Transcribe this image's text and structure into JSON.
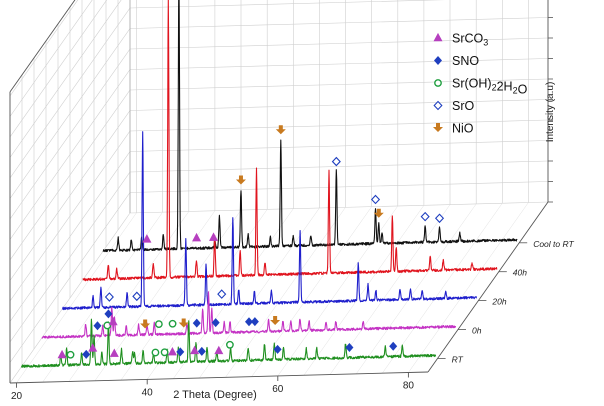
{
  "chart_data": {
    "type": "line",
    "title": "",
    "xlabel": "2 Theta (Degree)",
    "zlabel": "Intensity (a.u)",
    "x_ticks": [
      "20",
      "40",
      "60",
      "80"
    ],
    "x_tick_values": [
      20,
      40,
      60,
      80
    ],
    "xlim": [
      19,
      83
    ],
    "grid": true,
    "legend_position": "top-right",
    "colors": {
      "SrCO3": "#b63fbf",
      "SNO": "#1f3fbf",
      "Sr(OH)2H2O": "#1f9f3f",
      "SrO": "#1f3fbf",
      "NiO": "#c87a1f"
    },
    "legend": [
      {
        "key": "SrCO3",
        "label_main": "SrCO",
        "label_sub": "3",
        "label_tail": "",
        "marker": "triangle"
      },
      {
        "key": "SNO",
        "label_main": "SNO",
        "label_sub": "",
        "label_tail": "",
        "marker": "diamond-filled"
      },
      {
        "key": "Sr(OH)2H2O",
        "label_main": "Sr(OH)",
        "label_sub": "2",
        "label_tail": "2H",
        "label_sub2": "2",
        "label_tail2": "O",
        "marker": "circle-open"
      },
      {
        "key": "SrO",
        "label_main": "SrO",
        "label_sub": "",
        "label_tail": "",
        "marker": "diamond-open"
      },
      {
        "key": "NiO",
        "label_main": "NiO",
        "label_sub": "",
        "label_tail": "",
        "marker": "arrow-down"
      }
    ],
    "series": [
      {
        "name": "RT",
        "color": "#1f8f1f",
        "peaks": [
          [
            25.3,
            0.05
          ],
          [
            26.2,
            0.08
          ],
          [
            28.5,
            0.06
          ],
          [
            30.0,
            0.22
          ],
          [
            30.4,
            0.14
          ],
          [
            31.6,
            0.06
          ],
          [
            32.6,
            0.2
          ],
          [
            34.6,
            0.07
          ],
          [
            36.3,
            0.06
          ],
          [
            36.6,
            0.05
          ],
          [
            37.9,
            0.06
          ],
          [
            39.5,
            0.05
          ],
          [
            41.6,
            0.06
          ],
          [
            43.3,
            0.07
          ],
          [
            44.9,
            0.2
          ],
          [
            46.0,
            0.09
          ],
          [
            47.7,
            0.07
          ],
          [
            49.2,
            0.05
          ],
          [
            51.3,
            0.06
          ],
          [
            54.0,
            0.06
          ],
          [
            56.5,
            0.08
          ],
          [
            58.0,
            0.08
          ],
          [
            59.4,
            0.06
          ],
          [
            62.9,
            0.05
          ],
          [
            64.5,
            0.05
          ],
          [
            68.9,
            0.07
          ],
          [
            75.0,
            0.05
          ],
          [
            77.6,
            0.05
          ]
        ],
        "markers": [
          {
            "x": 25.5,
            "type": "SrCO3"
          },
          {
            "x": 26.8,
            "type": "Sr(OH)2H2O"
          },
          {
            "x": 29.2,
            "type": "SNO"
          },
          {
            "x": 30.2,
            "type": "SrCO3"
          },
          {
            "x": 32.6,
            "type": "SNO"
          },
          {
            "x": 33.5,
            "type": "SrCO3"
          },
          {
            "x": 39.8,
            "type": "Sr(OH)2H2O"
          },
          {
            "x": 41.2,
            "type": "Sr(OH)2H2O"
          },
          {
            "x": 42.4,
            "type": "SrCO3"
          },
          {
            "x": 43.6,
            "type": "SNO"
          },
          {
            "x": 45.8,
            "type": "SrCO3"
          },
          {
            "x": 46.9,
            "type": "SNO"
          },
          {
            "x": 49.5,
            "type": "SrCO3"
          },
          {
            "x": 51.2,
            "type": "Sr(OH)2H2O"
          },
          {
            "x": 58.5,
            "type": "SNO"
          },
          {
            "x": 69.5,
            "type": "SNO"
          },
          {
            "x": 76.2,
            "type": "SNO"
          }
        ]
      },
      {
        "name": "0h",
        "color": "#c433c4",
        "peaks": [
          [
            26.0,
            0.06
          ],
          [
            28.6,
            0.05
          ],
          [
            30.0,
            0.14
          ],
          [
            30.4,
            0.09
          ],
          [
            32.2,
            0.05
          ],
          [
            34.1,
            0.05
          ],
          [
            35.4,
            0.05
          ],
          [
            36.5,
            0.06
          ],
          [
            41.5,
            0.05
          ],
          [
            43.9,
            0.12
          ],
          [
            44.8,
            0.2
          ],
          [
            45.3,
            0.12
          ],
          [
            47.2,
            0.05
          ],
          [
            48.1,
            0.05
          ],
          [
            54.0,
            0.06
          ],
          [
            56.2,
            0.05
          ],
          [
            57.4,
            0.05
          ],
          [
            58.8,
            0.06
          ],
          [
            60.2,
            0.05
          ],
          [
            62.8,
            0.04
          ],
          [
            64.3,
            0.04
          ],
          [
            68.5,
            0.04
          ]
        ],
        "markers": [
          {
            "x": 27.8,
            "type": "SNO"
          },
          {
            "x": 29.3,
            "type": "Sr(OH)2H2O"
          },
          {
            "x": 30.2,
            "type": "SrCO3"
          },
          {
            "x": 35.1,
            "type": "NiO"
          },
          {
            "x": 37.2,
            "type": "Sr(OH)2H2O"
          },
          {
            "x": 39.3,
            "type": "Sr(OH)2H2O"
          },
          {
            "x": 41.0,
            "type": "NiO"
          },
          {
            "x": 43.0,
            "type": "SNO"
          },
          {
            "x": 45.9,
            "type": "SNO"
          },
          {
            "x": 51.0,
            "type": "SNO"
          },
          {
            "x": 51.9,
            "type": "SNO"
          },
          {
            "x": 55.0,
            "type": "NiO"
          }
        ]
      },
      {
        "name": "20h",
        "color": "#1f1fcc",
        "peaks": [
          [
            24.0,
            0.06
          ],
          [
            25.2,
            0.1
          ],
          [
            29.2,
            0.07
          ],
          [
            31.6,
            0.85
          ],
          [
            38.2,
            0.32
          ],
          [
            41.3,
            0.2
          ],
          [
            45.4,
            0.42
          ],
          [
            46.3,
            0.07
          ],
          [
            48.7,
            0.06
          ],
          [
            51.3,
            0.06
          ],
          [
            55.7,
            0.35
          ],
          [
            64.6,
            0.18
          ],
          [
            66.1,
            0.08
          ],
          [
            67.3,
            0.05
          ],
          [
            71.0,
            0.05
          ],
          [
            72.6,
            0.05
          ],
          [
            74.4,
            0.04
          ],
          [
            78.0,
            0.03
          ]
        ],
        "markers": [
          {
            "x": 26.5,
            "type": "SrO"
          },
          {
            "x": 30.7,
            "type": "SrO"
          },
          {
            "x": 43.7,
            "type": "SrO"
          }
        ]
      },
      {
        "name": "40h",
        "color": "#e0141e",
        "peaks": [
          [
            23.2,
            0.07
          ],
          [
            24.5,
            0.05
          ],
          [
            30.1,
            0.07
          ],
          [
            32.4,
            1.35
          ],
          [
            36.7,
            0.08
          ],
          [
            39.5,
            0.2
          ],
          [
            43.4,
            0.12
          ],
          [
            45.9,
            0.52
          ],
          [
            47.2,
            0.06
          ],
          [
            57.0,
            0.5
          ],
          [
            66.7,
            0.27
          ],
          [
            67.3,
            0.12
          ],
          [
            72.5,
            0.07
          ],
          [
            74.5,
            0.05
          ],
          [
            78.9,
            0.03
          ]
        ],
        "markers": []
      },
      {
        "name": "Cool to RT",
        "color": "#111111",
        "peaks": [
          [
            21.6,
            0.06
          ],
          [
            23.6,
            0.05
          ],
          [
            25.2,
            0.06
          ],
          [
            28.5,
            0.07
          ],
          [
            30.9,
            1.35
          ],
          [
            36.4,
            0.04
          ],
          [
            37.1,
            0.16
          ],
          [
            40.4,
            0.28
          ],
          [
            41.5,
            0.06
          ],
          [
            44.9,
            0.05
          ],
          [
            46.5,
            0.52
          ],
          [
            48.4,
            0.05
          ],
          [
            51.1,
            0.05
          ],
          [
            55.0,
            0.36
          ],
          [
            61.0,
            0.17
          ],
          [
            61.5,
            0.1
          ],
          [
            62.0,
            0.05
          ],
          [
            68.6,
            0.08
          ],
          [
            70.8,
            0.07
          ],
          [
            73.9,
            0.04
          ]
        ],
        "markers": [
          {
            "x": 26.0,
            "type": "SrCO3"
          },
          {
            "x": 30.9,
            "type": "SrO"
          },
          {
            "x": 33.6,
            "type": "SrCO3"
          },
          {
            "x": 36.2,
            "type": "SrCO3"
          },
          {
            "x": 40.4,
            "type": "NiO"
          },
          {
            "x": 46.5,
            "type": "NiO"
          },
          {
            "x": 55.0,
            "type": "SrO"
          },
          {
            "x": 61.0,
            "type": "SrO"
          },
          {
            "x": 61.5,
            "type": "NiO"
          },
          {
            "x": 68.6,
            "type": "SrO"
          },
          {
            "x": 70.8,
            "type": "SrO"
          }
        ]
      }
    ]
  }
}
